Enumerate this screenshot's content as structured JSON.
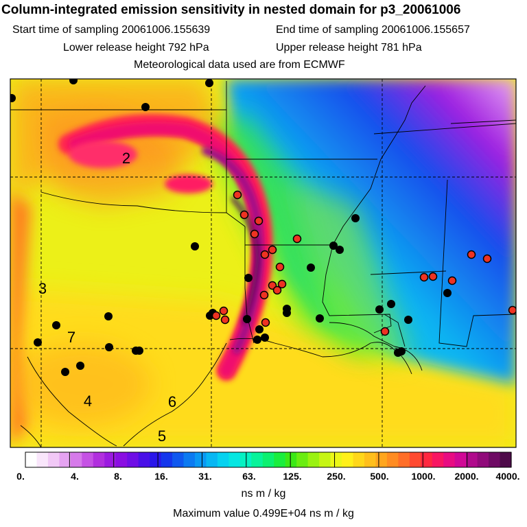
{
  "header": {
    "title": "Column-integrated emission sensitivity in nested domain for p3_20061006",
    "start_time": "Start time of sampling 20061006.155639",
    "end_time": "End time of sampling 20061006.155657",
    "lower_release": "Lower release height  792 hPa",
    "upper_release": "Upper release height  781 hPa",
    "met_data": "Meteorological data used are from ECMWF"
  },
  "map": {
    "region_labels": [
      "2",
      "3",
      "7",
      "4",
      "6",
      "5"
    ],
    "colors": {
      "marker_black": "#000000",
      "marker_red": "#ee3322"
    }
  },
  "colorbar": {
    "labels": [
      "0.",
      "4.",
      "8.",
      "16.",
      "31.",
      "63.",
      "125.",
      "250.",
      "500.",
      "1000.",
      "2000.",
      "4000."
    ],
    "colors": [
      "#ffffff",
      "#f9e6fb",
      "#f1c8f6",
      "#e5a3f1",
      "#d67aea",
      "#c552e4",
      "#b12fde",
      "#9b1ae0",
      "#8a0ee2",
      "#6f0ee6",
      "#4a10e8",
      "#2a16ea",
      "#1436ec",
      "#0f58ef",
      "#0c7af1",
      "#0a98f3",
      "#08b7f3",
      "#06d2f0",
      "#06e6e2",
      "#06f2c2",
      "#08f39a",
      "#0cf070",
      "#1aed3e",
      "#3be816",
      "#6aed12",
      "#9af212",
      "#c6f514",
      "#ecf718",
      "#fff01a",
      "#ffd71a",
      "#ffbf1c",
      "#ffa61e",
      "#ff8c22",
      "#ff6e28",
      "#ff4a30",
      "#ff2840",
      "#f81662",
      "#e80c82",
      "#d00896",
      "#b00a8c",
      "#900a7a",
      "#6e0a64",
      "#4e0a4a"
    ],
    "units": "ns m / kg",
    "max_value": "Maximum value  0.499E+04 ns m / kg"
  }
}
